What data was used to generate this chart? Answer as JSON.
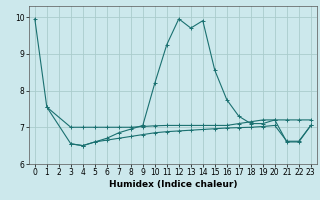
{
  "xlabel": "Humidex (Indice chaleur)",
  "xlim": [
    -0.5,
    23.5
  ],
  "ylim": [
    6.0,
    10.3
  ],
  "yticks": [
    6,
    7,
    8,
    9,
    10
  ],
  "xticks": [
    0,
    1,
    2,
    3,
    4,
    5,
    6,
    7,
    8,
    9,
    10,
    11,
    12,
    13,
    14,
    15,
    16,
    17,
    18,
    19,
    20,
    21,
    22,
    23
  ],
  "background_color": "#cce8ec",
  "grid_color": "#aacccc",
  "line_color": "#1a7070",
  "line1_x": [
    0,
    1,
    3,
    4,
    5,
    6,
    7,
    8,
    9,
    10,
    11,
    12,
    13,
    14,
    15,
    16,
    17,
    18,
    19,
    20,
    21,
    22,
    23
  ],
  "line1_y": [
    9.95,
    7.55,
    6.55,
    6.5,
    6.6,
    6.7,
    6.85,
    6.95,
    7.05,
    8.2,
    9.25,
    9.95,
    9.7,
    9.9,
    8.55,
    7.75,
    7.3,
    7.1,
    7.1,
    7.2,
    6.6,
    6.6,
    7.05
  ],
  "line2_x": [
    1,
    3,
    4,
    5,
    6,
    7,
    8,
    9,
    10,
    11,
    12,
    13,
    14,
    15,
    16,
    17,
    18,
    19,
    20,
    21,
    22,
    23
  ],
  "line2_y": [
    7.55,
    7.0,
    7.0,
    7.0,
    7.0,
    7.0,
    7.0,
    7.02,
    7.04,
    7.05,
    7.05,
    7.05,
    7.05,
    7.05,
    7.05,
    7.1,
    7.15,
    7.2,
    7.2,
    7.2,
    7.2,
    7.2
  ],
  "line3_x": [
    3,
    4,
    5,
    6,
    7,
    8,
    9,
    10,
    11,
    12,
    13,
    14,
    15,
    16,
    17,
    18,
    19,
    20,
    21,
    22,
    23
  ],
  "line3_y": [
    6.55,
    6.5,
    6.6,
    6.65,
    6.7,
    6.75,
    6.8,
    6.85,
    6.88,
    6.9,
    6.92,
    6.94,
    6.96,
    6.98,
    6.99,
    7.0,
    7.02,
    7.05,
    6.62,
    6.62,
    7.05
  ]
}
